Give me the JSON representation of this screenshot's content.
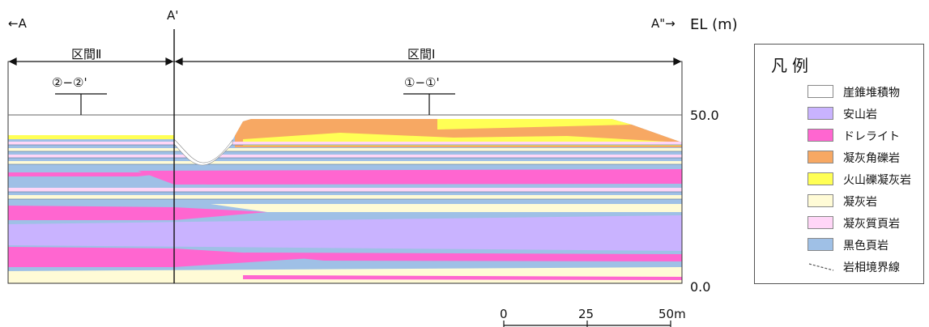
{
  "header": {
    "left_marker": "←A",
    "mid_marker": "A'",
    "right_marker": "A\"→",
    "elevation_label": "EL (m)"
  },
  "sections": {
    "section_2": "区間Ⅱ",
    "section_1": "区間Ⅰ",
    "sub_2": "②−②'",
    "sub_1": "①−①'"
  },
  "elevation_ticks": [
    "50.0",
    "0.0"
  ],
  "scale_bar": {
    "ticks": [
      "0",
      "25",
      "50m"
    ]
  },
  "legend": {
    "title": "凡例",
    "items": [
      {
        "label": "崖錐堆積物",
        "color": "#ffffff"
      },
      {
        "label": "安山岩",
        "color": "#c9b3ff"
      },
      {
        "label": "ドレライト",
        "color": "#ff66d0"
      },
      {
        "label": "凝灰角礫岩",
        "color": "#f7a863"
      },
      {
        "label": "火山礫凝灰岩",
        "color": "#ffff55"
      },
      {
        "label": "凝灰岩",
        "color": "#fffbd6"
      },
      {
        "label": "凝灰質頁岩",
        "color": "#ffd6f7"
      },
      {
        "label": "黒色頁岩",
        "color": "#9fc0e6"
      },
      {
        "label": "岩相境界線",
        "color": "#555555",
        "type": "dashed-line"
      }
    ]
  }
}
